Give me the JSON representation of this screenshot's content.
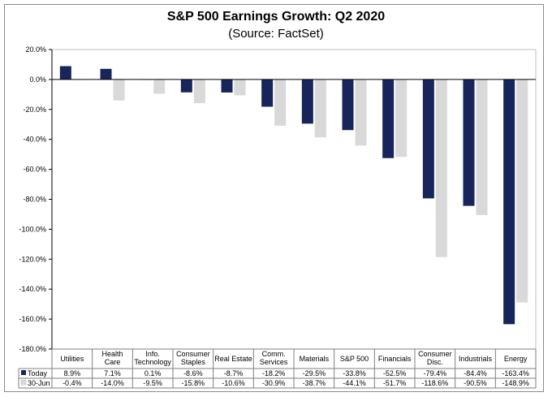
{
  "chart_data": {
    "type": "bar",
    "title": "S&P 500 Earnings Growth: Q2 2020",
    "subtitle": "(Source: FactSet)",
    "categories": [
      [
        "Utilities"
      ],
      [
        "Health",
        "Care"
      ],
      [
        "Info.",
        "Technology"
      ],
      [
        "Consumer",
        "Staples"
      ],
      [
        "Real Estate"
      ],
      [
        "Comm.",
        "Services"
      ],
      [
        "Materials"
      ],
      [
        "S&P 500"
      ],
      [
        "Financials"
      ],
      [
        "Consumer",
        "Disc."
      ],
      [
        "Industrials"
      ],
      [
        "Energy"
      ]
    ],
    "series": [
      {
        "name": "Today",
        "color": "#17255a",
        "values": [
          8.9,
          7.1,
          0.1,
          -8.6,
          -8.7,
          -18.2,
          -29.5,
          -33.8,
          -52.5,
          -79.4,
          -84.4,
          -163.4
        ],
        "labels": [
          "8.9%",
          "7.1%",
          "0.1%",
          "-8.6%",
          "-8.7%",
          "-18.2%",
          "-29.5%",
          "-33.8%",
          "-52.5%",
          "-79.4%",
          "-84.4%",
          "-163.4%"
        ]
      },
      {
        "name": "30-Jun",
        "color": "#d9d9d9",
        "values": [
          -0.4,
          -14.0,
          -9.5,
          -15.8,
          -10.6,
          -30.9,
          -38.7,
          -44.1,
          -51.7,
          -118.6,
          -90.5,
          -148.9
        ],
        "labels": [
          "-0.4%",
          "-14.0%",
          "-9.5%",
          "-15.8%",
          "-10.6%",
          "-30.9%",
          "-38.7%",
          "-44.1%",
          "-51.7%",
          "-118.6%",
          "-90.5%",
          "-148.9%"
        ]
      }
    ],
    "ylim": [
      -180,
      20
    ],
    "yticks": [
      20,
      0,
      -20,
      -40,
      -60,
      -80,
      -100,
      -120,
      -140,
      -160,
      -180
    ],
    "ytick_labels": [
      "20.0%",
      "0.0%",
      "-20.0%",
      "-40.0%",
      "-60.0%",
      "-80.0%",
      "-100.0%",
      "-120.0%",
      "-140.0%",
      "-160.0%",
      "-180.0%"
    ],
    "xlabel": "",
    "ylabel": "",
    "legend": "data-table"
  }
}
